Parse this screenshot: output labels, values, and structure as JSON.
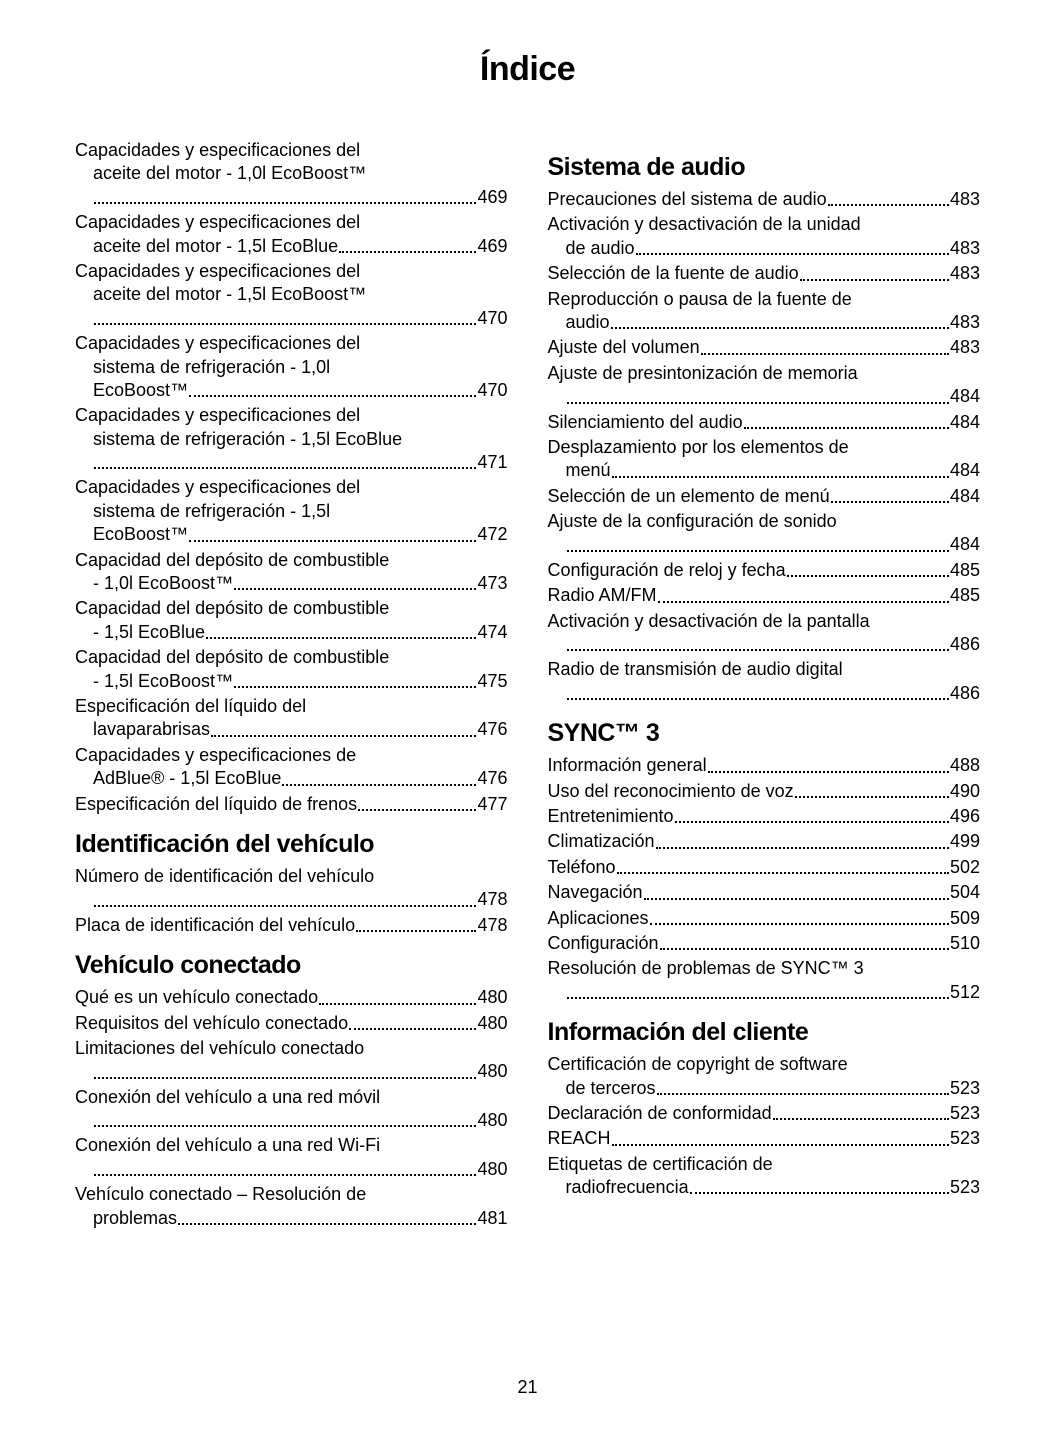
{
  "pageTitle": "Índice",
  "pageNumber": "21",
  "columns": [
    {
      "blocks": [
        {
          "type": "entries",
          "entries": [
            {
              "lines": [
                "Capacidades y especificaciones del",
                "aceite del motor - 1,0l EcoBoost™"
              ],
              "indentFrom": 1,
              "dotsOnNewLine": true,
              "page": "469"
            },
            {
              "lines": [
                "Capacidades y especificaciones del",
                "aceite del motor - 1,5l EcoBlue"
              ],
              "indentFrom": 1,
              "page": "469"
            },
            {
              "lines": [
                "Capacidades y especificaciones del",
                "aceite del motor - 1,5l EcoBoost™"
              ],
              "indentFrom": 1,
              "dotsOnNewLine": true,
              "page": "470"
            },
            {
              "lines": [
                "Capacidades y especificaciones del",
                "sistema de refrigeración - 1,0l",
                "EcoBoost™"
              ],
              "indentFrom": 1,
              "page": "470"
            },
            {
              "lines": [
                "Capacidades y especificaciones del",
                "sistema de refrigeración - 1,5l EcoBlue"
              ],
              "indentFrom": 1,
              "dotsOnNewLine": true,
              "page": "471"
            },
            {
              "lines": [
                "Capacidades y especificaciones del",
                "sistema de refrigeración - 1,5l",
                "EcoBoost™"
              ],
              "indentFrom": 1,
              "page": "472"
            },
            {
              "lines": [
                "Capacidad del depósito de combustible",
                "- 1,0l EcoBoost™"
              ],
              "indentFrom": 1,
              "page": "473"
            },
            {
              "lines": [
                "Capacidad del depósito de combustible",
                "- 1,5l EcoBlue"
              ],
              "indentFrom": 1,
              "page": "474"
            },
            {
              "lines": [
                "Capacidad del depósito de combustible",
                "- 1,5l EcoBoost™"
              ],
              "indentFrom": 1,
              "page": "475"
            },
            {
              "lines": [
                "Especificación del líquido del",
                "lavaparabrisas"
              ],
              "indentFrom": 1,
              "page": "476"
            },
            {
              "lines": [
                "Capacidades y especificaciones de",
                "AdBlue® - 1,5l EcoBlue"
              ],
              "indentFrom": 1,
              "page": "476"
            },
            {
              "lines": [
                "Especificación del líquido de frenos"
              ],
              "page": "477"
            }
          ]
        },
        {
          "type": "heading",
          "text": "Identificación del vehículo"
        },
        {
          "type": "entries",
          "entries": [
            {
              "lines": [
                "Número de identificación del vehículo"
              ],
              "dotsOnNewLine": true,
              "page": "478"
            },
            {
              "lines": [
                "Placa de identificación del vehículo"
              ],
              "page": "478"
            }
          ]
        },
        {
          "type": "heading",
          "text": "Vehículo conectado"
        },
        {
          "type": "entries",
          "entries": [
            {
              "lines": [
                "Qué es un vehículo conectado"
              ],
              "page": "480"
            },
            {
              "lines": [
                "Requisitos del vehículo conectado"
              ],
              "page": "480"
            },
            {
              "lines": [
                "Limitaciones del vehículo conectado"
              ],
              "dotsOnNewLine": true,
              "page": "480"
            },
            {
              "lines": [
                "Conexión del vehículo a una red móvil"
              ],
              "dotsOnNewLine": true,
              "page": "480"
            },
            {
              "lines": [
                "Conexión del vehículo a una red Wi-Fi"
              ],
              "dotsOnNewLine": true,
              "page": "480"
            },
            {
              "lines": [
                "Vehículo conectado – Resolución de",
                "problemas"
              ],
              "indentFrom": 1,
              "page": "481"
            }
          ]
        }
      ]
    },
    {
      "blocks": [
        {
          "type": "heading",
          "text": "Sistema de audio"
        },
        {
          "type": "entries",
          "entries": [
            {
              "lines": [
                "Precauciones del sistema de audio"
              ],
              "page": "483"
            },
            {
              "lines": [
                "Activación y desactivación de la unidad",
                "de audio"
              ],
              "indentFrom": 1,
              "page": "483"
            },
            {
              "lines": [
                "Selección de la fuente de audio"
              ],
              "page": "483"
            },
            {
              "lines": [
                "Reproducción o pausa de la fuente de",
                "audio"
              ],
              "indentFrom": 1,
              "page": "483"
            },
            {
              "lines": [
                "Ajuste del volumen"
              ],
              "page": "483"
            },
            {
              "lines": [
                "Ajuste de presintonización de memoria"
              ],
              "dotsOnNewLine": true,
              "page": "484"
            },
            {
              "lines": [
                "Silenciamiento del audio"
              ],
              "page": "484"
            },
            {
              "lines": [
                "Desplazamiento por los elementos de",
                "menú"
              ],
              "indentFrom": 1,
              "page": "484"
            },
            {
              "lines": [
                "Selección de un elemento de menú"
              ],
              "page": "484"
            },
            {
              "lines": [
                "Ajuste de la configuración de sonido"
              ],
              "dotsOnNewLine": true,
              "page": "484"
            },
            {
              "lines": [
                "Configuración de reloj y fecha"
              ],
              "page": "485"
            },
            {
              "lines": [
                "Radio AM/FM"
              ],
              "page": "485"
            },
            {
              "lines": [
                "Activación y desactivación de la pantalla"
              ],
              "dotsOnNewLine": true,
              "page": "486"
            },
            {
              "lines": [
                "Radio de transmisión de audio digital"
              ],
              "dotsOnNewLine": true,
              "page": "486"
            }
          ]
        },
        {
          "type": "heading",
          "text": "SYNC™ 3"
        },
        {
          "type": "entries",
          "entries": [
            {
              "lines": [
                "Información general"
              ],
              "page": "488"
            },
            {
              "lines": [
                "Uso del reconocimiento de voz "
              ],
              "page": "490"
            },
            {
              "lines": [
                "Entretenimiento "
              ],
              "page": "496"
            },
            {
              "lines": [
                "Climatización "
              ],
              "page": "499"
            },
            {
              "lines": [
                "Teléfono "
              ],
              "page": "502"
            },
            {
              "lines": [
                "Navegación "
              ],
              "page": "504"
            },
            {
              "lines": [
                "Aplicaciones "
              ],
              "page": "509"
            },
            {
              "lines": [
                "Configuración "
              ],
              "page": "510"
            },
            {
              "lines": [
                "Resolución de problemas de SYNC™ 3"
              ],
              "dotsOnNewLine": true,
              "page": "512"
            }
          ]
        },
        {
          "type": "heading",
          "text": "Información del cliente"
        },
        {
          "type": "entries",
          "entries": [
            {
              "lines": [
                "Certificación de copyright de software",
                "de terceros"
              ],
              "indentFrom": 1,
              "page": "523"
            },
            {
              "lines": [
                "Declaración de conformidad"
              ],
              "page": "523"
            },
            {
              "lines": [
                "REACH "
              ],
              "page": "523"
            },
            {
              "lines": [
                "Etiquetas de certificación de",
                "radiofrecuencia "
              ],
              "indentFrom": 1,
              "page": "523"
            }
          ]
        }
      ]
    }
  ]
}
